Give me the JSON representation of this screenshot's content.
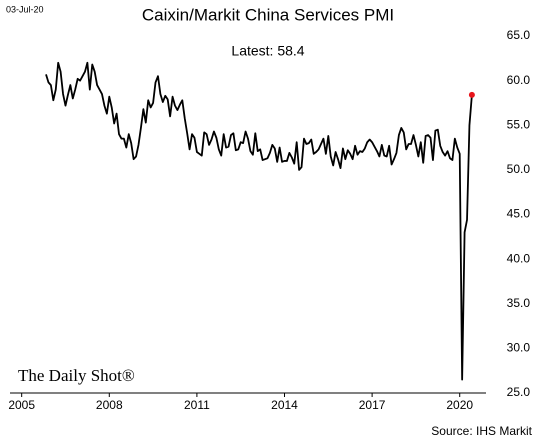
{
  "chart_data": {
    "type": "line",
    "title": "Caixin/Markit China Services PMI",
    "date_stamp": "03-Jul-20",
    "annotation": "Latest:  58.4",
    "watermark": "The Daily Shot®",
    "source": "Source: IHS Markit",
    "color": "#000000",
    "highlight_color": "#e8141b",
    "x": [
      2005.833,
      2005.917,
      2006,
      2006.083,
      2006.167,
      2006.25,
      2006.333,
      2006.417,
      2006.5,
      2006.583,
      2006.667,
      2006.75,
      2006.833,
      2006.917,
      2007,
      2007.083,
      2007.167,
      2007.25,
      2007.333,
      2007.417,
      2007.5,
      2007.583,
      2007.667,
      2007.75,
      2007.833,
      2007.917,
      2008,
      2008.083,
      2008.167,
      2008.25,
      2008.333,
      2008.417,
      2008.5,
      2008.583,
      2008.667,
      2008.75,
      2008.833,
      2008.917,
      2009,
      2009.083,
      2009.167,
      2009.25,
      2009.333,
      2009.417,
      2009.5,
      2009.583,
      2009.667,
      2009.75,
      2009.833,
      2009.917,
      2010,
      2010.083,
      2010.167,
      2010.25,
      2010.333,
      2010.417,
      2010.5,
      2010.583,
      2010.667,
      2010.75,
      2010.833,
      2010.917,
      2011,
      2011.083,
      2011.167,
      2011.25,
      2011.333,
      2011.417,
      2011.5,
      2011.583,
      2011.667,
      2011.75,
      2011.833,
      2011.917,
      2012,
      2012.083,
      2012.167,
      2012.25,
      2012.333,
      2012.417,
      2012.5,
      2012.583,
      2012.667,
      2012.75,
      2012.833,
      2012.917,
      2013,
      2013.083,
      2013.167,
      2013.25,
      2013.333,
      2013.417,
      2013.5,
      2013.583,
      2013.667,
      2013.75,
      2013.833,
      2013.917,
      2014,
      2014.083,
      2014.167,
      2014.25,
      2014.333,
      2014.417,
      2014.5,
      2014.583,
      2014.667,
      2014.75,
      2014.833,
      2014.917,
      2015,
      2015.083,
      2015.167,
      2015.25,
      2015.333,
      2015.417,
      2015.5,
      2015.583,
      2015.667,
      2015.75,
      2015.833,
      2015.917,
      2016,
      2016.083,
      2016.167,
      2016.25,
      2016.333,
      2016.417,
      2016.5,
      2016.583,
      2016.667,
      2016.75,
      2016.833,
      2016.917,
      2017,
      2017.083,
      2017.167,
      2017.25,
      2017.333,
      2017.417,
      2017.5,
      2017.583,
      2017.667,
      2017.75,
      2017.833,
      2017.917,
      2018,
      2018.083,
      2018.167,
      2018.25,
      2018.333,
      2018.417,
      2018.5,
      2018.583,
      2018.667,
      2018.75,
      2018.833,
      2018.917,
      2019,
      2019.083,
      2019.167,
      2019.25,
      2019.333,
      2019.417,
      2019.5,
      2019.583,
      2019.667,
      2019.75,
      2019.833,
      2019.917,
      2020,
      2020.083,
      2020.167,
      2020.25,
      2020.333,
      2020.417
    ],
    "values": [
      60.7,
      59.8,
      59.5,
      57.8,
      59.0,
      62.0,
      61.0,
      58.5,
      57.2,
      58.4,
      59.5,
      58.0,
      59.0,
      60.2,
      60.0,
      60.5,
      61.0,
      62.0,
      59.0,
      61.8,
      61.0,
      59.5,
      59.0,
      58.5,
      57.2,
      56.3,
      58.2,
      57.0,
      55.2,
      56.3,
      54.0,
      53.5,
      53.5,
      52.5,
      54.0,
      53.0,
      51.2,
      51.5,
      52.8,
      54.7,
      56.8,
      55.3,
      57.8,
      57.0,
      57.5,
      59.8,
      60.5,
      58.5,
      57.6,
      58.3,
      57.9,
      56.0,
      58.2,
      57.2,
      56.7,
      57.3,
      57.8,
      55.8,
      54.1,
      52.3,
      54.0,
      53.6,
      52.0,
      51.8,
      51.6,
      54.2,
      54.0,
      52.8,
      53.4,
      54.3,
      53.6,
      52.3,
      51.6,
      54.0,
      52.5,
      52.6,
      53.9,
      54.1,
      52.2,
      52.3,
      53.1,
      53.0,
      54.3,
      53.5,
      52.1,
      51.7,
      54.1,
      52.1,
      52.3,
      51.1,
      51.2,
      51.3,
      51.9,
      52.8,
      52.4,
      50.9,
      52.5,
      50.9,
      51.0,
      51.0,
      51.9,
      51.4,
      50.7,
      53.1,
      50.0,
      50.3,
      53.5,
      52.9,
      53.0,
      53.4,
      51.8,
      52.0,
      52.3,
      52.9,
      53.5,
      51.8,
      53.8,
      51.5,
      50.5,
      52.0,
      51.2,
      50.2,
      52.4,
      51.2,
      52.2,
      51.8,
      51.2,
      52.7,
      51.7,
      52.1,
      52.0,
      52.4,
      53.1,
      53.4,
      53.1,
      52.6,
      52.1,
      51.5,
      52.8,
      51.6,
      51.5,
      52.7,
      50.6,
      51.2,
      51.9,
      53.9,
      54.7,
      54.2,
      52.3,
      52.9,
      52.9,
      53.9,
      52.8,
      51.5,
      53.1,
      50.8,
      53.8,
      53.9,
      53.6,
      51.1,
      54.4,
      54.5,
      52.7,
      52.0,
      51.6,
      52.1,
      51.3,
      51.1,
      53.5,
      52.5,
      51.8,
      26.5,
      43.0,
      44.4,
      55.0,
      58.4
    ],
    "xlim": [
      2004.6,
      2020.9
    ],
    "xticks": [
      2005,
      2008,
      2011,
      2014,
      2017,
      2020
    ],
    "ylim": [
      25,
      65
    ],
    "yticks": [
      {
        "value": 25,
        "label": "25.0"
      },
      {
        "value": 30,
        "label": "30.0"
      },
      {
        "value": 35,
        "label": "35.0"
      },
      {
        "value": 40,
        "label": "40.0"
      },
      {
        "value": 45,
        "label": "45.0"
      },
      {
        "value": 50,
        "label": "50.0"
      },
      {
        "value": 55,
        "label": "55.0"
      },
      {
        "value": 60,
        "label": "60.0"
      },
      {
        "value": 65,
        "label": "65.0"
      }
    ],
    "y_axis_side": "right",
    "grid": false
  }
}
